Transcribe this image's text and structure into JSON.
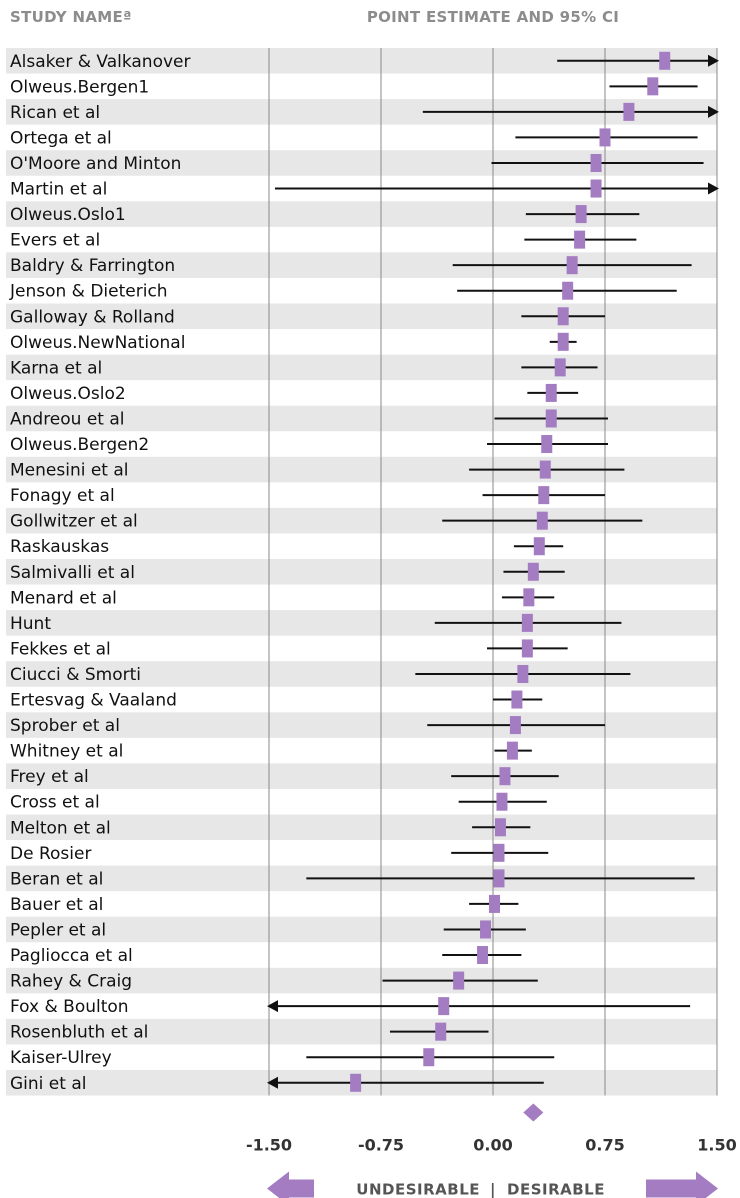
{
  "header": {
    "left": "STUDY NAMEª",
    "right": "POINT ESTIMATE AND 95% CI"
  },
  "direction": {
    "undesirable": "UNDESIRABLE",
    "separator": "|",
    "desirable": "DESIRABLE"
  },
  "colors": {
    "marker": "#a37cc1",
    "stripe": "#e7e7e7",
    "line": "#111111",
    "arrow": "#a37cc1"
  },
  "chart_data": {
    "type": "forest",
    "xlim": [
      -1.5,
      1.5
    ],
    "xticks": [
      -1.5,
      -0.75,
      0.0,
      0.75,
      1.5
    ],
    "xtick_labels": [
      "-1.50",
      "-0.75",
      "0.00",
      "0.75",
      "1.50"
    ],
    "grid": "vertical at ticks",
    "summary": {
      "estimate": 0.27
    },
    "studies": [
      {
        "name": "Alsaker & Valkanover",
        "estimate": 1.15,
        "lower": 0.43,
        "upper": 1.5,
        "arrow_right": true
      },
      {
        "name": "Olweus.Bergen1",
        "estimate": 1.07,
        "lower": 0.78,
        "upper": 1.37
      },
      {
        "name": "Rican et al",
        "estimate": 0.91,
        "lower": -0.47,
        "upper": 1.5,
        "arrow_right": true
      },
      {
        "name": "Ortega et al",
        "estimate": 0.75,
        "lower": 0.15,
        "upper": 1.37
      },
      {
        "name": "O'Moore and Minton",
        "estimate": 0.69,
        "lower": -0.01,
        "upper": 1.41
      },
      {
        "name": "Martin et al",
        "estimate": 0.69,
        "lower": -1.46,
        "upper": 1.5,
        "arrow_right": true
      },
      {
        "name": "Olweus.Oslo1",
        "estimate": 0.59,
        "lower": 0.22,
        "upper": 0.98
      },
      {
        "name": "Evers et al",
        "estimate": 0.58,
        "lower": 0.21,
        "upper": 0.96
      },
      {
        "name": "Baldry & Farrington",
        "estimate": 0.53,
        "lower": -0.27,
        "upper": 1.33
      },
      {
        "name": "Jenson & Dieterich",
        "estimate": 0.5,
        "lower": -0.24,
        "upper": 1.23
      },
      {
        "name": "Galloway & Rolland",
        "estimate": 0.47,
        "lower": 0.19,
        "upper": 0.75
      },
      {
        "name": "Olweus.NewNational",
        "estimate": 0.47,
        "lower": 0.38,
        "upper": 0.56
      },
      {
        "name": "Karna et al",
        "estimate": 0.45,
        "lower": 0.19,
        "upper": 0.7
      },
      {
        "name": "Olweus.Oslo2",
        "estimate": 0.39,
        "lower": 0.23,
        "upper": 0.57
      },
      {
        "name": "Andreou et al",
        "estimate": 0.39,
        "lower": 0.01,
        "upper": 0.77
      },
      {
        "name": "Olweus.Bergen2",
        "estimate": 0.36,
        "lower": -0.04,
        "upper": 0.77
      },
      {
        "name": "Menesini et al",
        "estimate": 0.35,
        "lower": -0.16,
        "upper": 0.88
      },
      {
        "name": "Fonagy et al",
        "estimate": 0.34,
        "lower": -0.07,
        "upper": 0.75
      },
      {
        "name": "Gollwitzer et al",
        "estimate": 0.33,
        "lower": -0.34,
        "upper": 1.0
      },
      {
        "name": "Raskauskas",
        "estimate": 0.31,
        "lower": 0.14,
        "upper": 0.47
      },
      {
        "name": "Salmivalli et al",
        "estimate": 0.27,
        "lower": 0.07,
        "upper": 0.48
      },
      {
        "name": "Menard et al",
        "estimate": 0.24,
        "lower": 0.06,
        "upper": 0.41
      },
      {
        "name": "Hunt",
        "estimate": 0.23,
        "lower": -0.39,
        "upper": 0.86
      },
      {
        "name": "Fekkes et al",
        "estimate": 0.23,
        "lower": -0.04,
        "upper": 0.5
      },
      {
        "name": "Ciucci & Smorti",
        "estimate": 0.2,
        "lower": -0.52,
        "upper": 0.92
      },
      {
        "name": "Ertesvag & Vaaland",
        "estimate": 0.16,
        "lower": 0.0,
        "upper": 0.33
      },
      {
        "name": "Sprober et al",
        "estimate": 0.15,
        "lower": -0.44,
        "upper": 0.75
      },
      {
        "name": "Whitney et al",
        "estimate": 0.13,
        "lower": 0.01,
        "upper": 0.26
      },
      {
        "name": "Frey et al",
        "estimate": 0.08,
        "lower": -0.28,
        "upper": 0.44
      },
      {
        "name": "Cross et al",
        "estimate": 0.06,
        "lower": -0.23,
        "upper": 0.36
      },
      {
        "name": "Melton et al",
        "estimate": 0.05,
        "lower": -0.14,
        "upper": 0.25
      },
      {
        "name": "De Rosier",
        "estimate": 0.04,
        "lower": -0.28,
        "upper": 0.37
      },
      {
        "name": "Beran et al",
        "estimate": 0.04,
        "lower": -1.25,
        "upper": 1.35
      },
      {
        "name": "Bauer et al",
        "estimate": 0.01,
        "lower": -0.16,
        "upper": 0.17
      },
      {
        "name": "Pepler et al",
        "estimate": -0.05,
        "lower": -0.33,
        "upper": 0.22
      },
      {
        "name": "Pagliocca et al",
        "estimate": -0.07,
        "lower": -0.34,
        "upper": 0.19
      },
      {
        "name": "Rahey & Craig",
        "estimate": -0.23,
        "lower": -0.74,
        "upper": 0.3
      },
      {
        "name": "Fox & Boulton",
        "estimate": -0.33,
        "lower": -1.5,
        "upper": 1.32,
        "arrow_left": true
      },
      {
        "name": "Rosenbluth et al",
        "estimate": -0.35,
        "lower": -0.69,
        "upper": -0.03
      },
      {
        "name": "Kaiser-Ulrey",
        "estimate": -0.43,
        "lower": -1.25,
        "upper": 0.41
      },
      {
        "name": "Gini et al",
        "estimate": -0.92,
        "lower": -1.5,
        "upper": 0.34,
        "arrow_left": true
      }
    ]
  }
}
